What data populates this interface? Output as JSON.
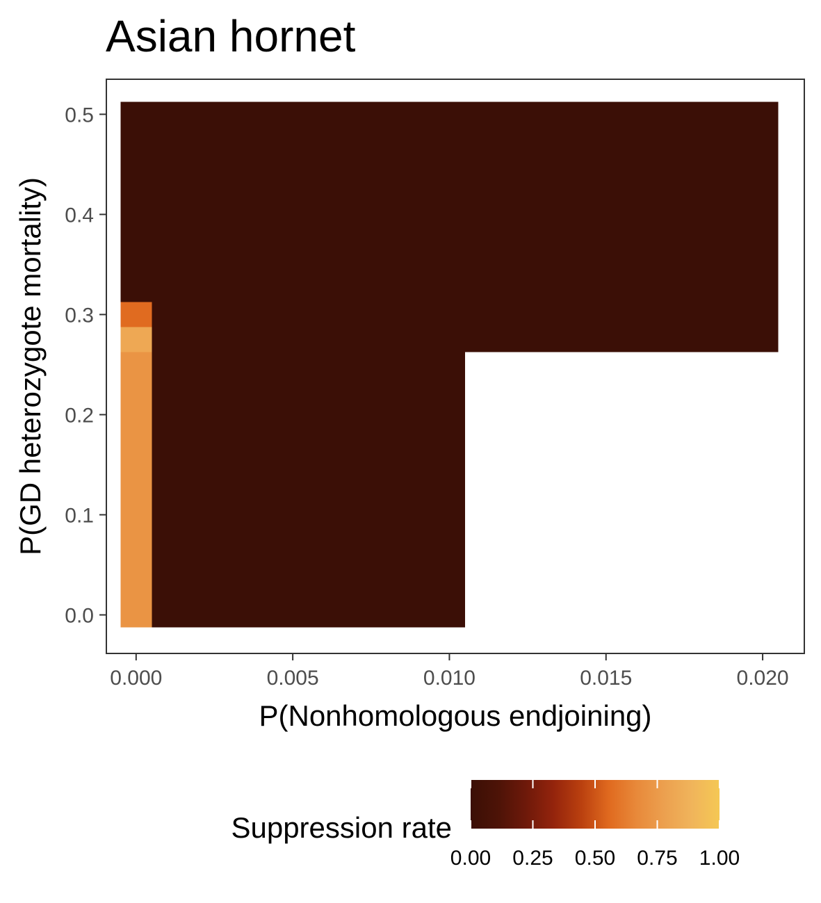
{
  "chart_data": {
    "type": "heatmap",
    "title": "Asian hornet",
    "xlabel": "P(Nonhomologous endjoining)",
    "ylabel": "P(GD heterozygote mortality)",
    "xlim": [
      -0.00095,
      0.02133
    ],
    "ylim": [
      -0.0385,
      0.535
    ],
    "x_ticks": [
      0.0,
      0.005,
      0.01,
      0.015,
      0.02
    ],
    "x_tick_labels": [
      "0.000",
      "0.005",
      "0.010",
      "0.015",
      "0.020"
    ],
    "y_ticks": [
      0.0,
      0.1,
      0.2,
      0.3,
      0.4,
      0.5
    ],
    "y_tick_labels": [
      "0.0",
      "0.1",
      "0.2",
      "0.3",
      "0.4",
      "0.5"
    ],
    "cells": [
      {
        "x0": -0.0005,
        "x1": 0.0005,
        "y0": -0.0125,
        "y1": 0.2625,
        "value": 0.72
      },
      {
        "x0": -0.0005,
        "x1": 0.0005,
        "y0": 0.2625,
        "y1": 0.2875,
        "value": 0.82
      },
      {
        "x0": -0.0005,
        "x1": 0.0005,
        "y0": 0.2875,
        "y1": 0.3125,
        "value": 0.56
      },
      {
        "x0": -0.0005,
        "x1": 0.0005,
        "y0": 0.3125,
        "y1": 0.5125,
        "value": 0.0
      },
      {
        "x0": 0.0005,
        "x1": 0.0105,
        "y0": -0.0125,
        "y1": 0.5125,
        "value": 0.0
      },
      {
        "x0": 0.0105,
        "x1": 0.0205,
        "y0": 0.2625,
        "y1": 0.5125,
        "value": 0.0
      }
    ],
    "legend": {
      "title": "Suppression rate",
      "position": "bottom",
      "ticks": [
        0.0,
        0.25,
        0.5,
        0.75,
        1.0
      ],
      "tick_labels": [
        "0.00",
        "0.25",
        "0.50",
        "0.75",
        "1.00"
      ],
      "colorscale": [
        "#3b0f06",
        "#4d1307",
        "#6e190a",
        "#94240c",
        "#ba400f",
        "#e06a1f",
        "#e8893a",
        "#eca04f",
        "#f0b45b",
        "#f5c854"
      ]
    },
    "grid": false
  }
}
